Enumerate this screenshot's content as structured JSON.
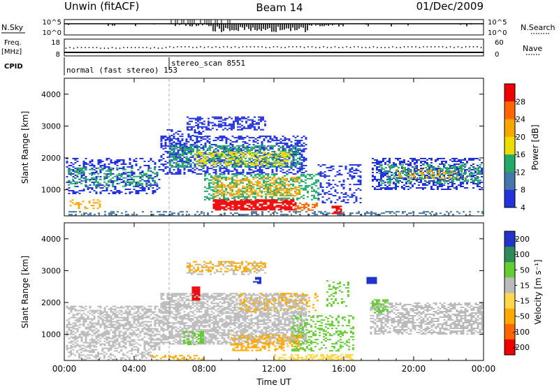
{
  "header": {
    "station": "Unwin (fitACF)",
    "beam": "Beam 14",
    "date": "01/Dec/2009"
  },
  "strips": {
    "nsky_label": "N.Sky",
    "nsky_ticks": [
      "10^5",
      "10^0"
    ],
    "nsearch_label": "N.Search",
    "nsearch_ticks": [
      "10^5",
      "10^0"
    ],
    "freq_label": "Freq.",
    "freq_unit": "[MHz]",
    "freq_ticks": [
      "18",
      "8"
    ],
    "nave_label": "Nave",
    "nave_ticks": [
      "60",
      "0"
    ],
    "cpid_label": "CPID",
    "cpid_modes": [
      {
        "name": "normal (fast stereo) 153",
        "start_hour": 0
      },
      {
        "name": "stereo_scan 8551",
        "start_hour": 6
      }
    ]
  },
  "chart_data": [
    {
      "type": "heatmap",
      "variable": "Power",
      "ylabel": "Slant Range [km]",
      "colorbar_label": "Power [dB]",
      "colorbar_ticks": [
        "28",
        "24",
        "20",
        "16",
        "12",
        "8",
        "4"
      ],
      "colorbar_colors": [
        "#ee0000",
        "#ff6600",
        "#f6a800",
        "#eedd00",
        "#22aa66",
        "#4477aa",
        "#2233dd"
      ],
      "yticks": [
        "4000",
        "3000",
        "2000",
        "1000"
      ],
      "ylim": [
        180,
        4500
      ],
      "xlim": [
        0,
        24
      ]
    },
    {
      "type": "heatmap",
      "variable": "Velocity",
      "ylabel": "Slant Range [km]",
      "colorbar_label": "Velocity [m s⁻¹]",
      "colorbar_ticks": [
        "200",
        "100",
        "50",
        "15",
        "-15",
        "-50",
        "-100",
        "-200"
      ],
      "colorbar_colors": [
        "#2233cc",
        "#2e8b57",
        "#66cc33",
        "#bbbbbb",
        "#ffd84d",
        "#ffaa00",
        "#ff6600",
        "#ee0000"
      ],
      "yticks": [
        "4000",
        "3000",
        "2000",
        "1000"
      ],
      "ylim": [
        180,
        4500
      ],
      "xlim": [
        0,
        24
      ],
      "xticks": [
        "00:00",
        "04:00",
        "08:00",
        "12:00",
        "16:00",
        "20:00",
        "00:00"
      ],
      "xlabel": "Time UT"
    }
  ]
}
